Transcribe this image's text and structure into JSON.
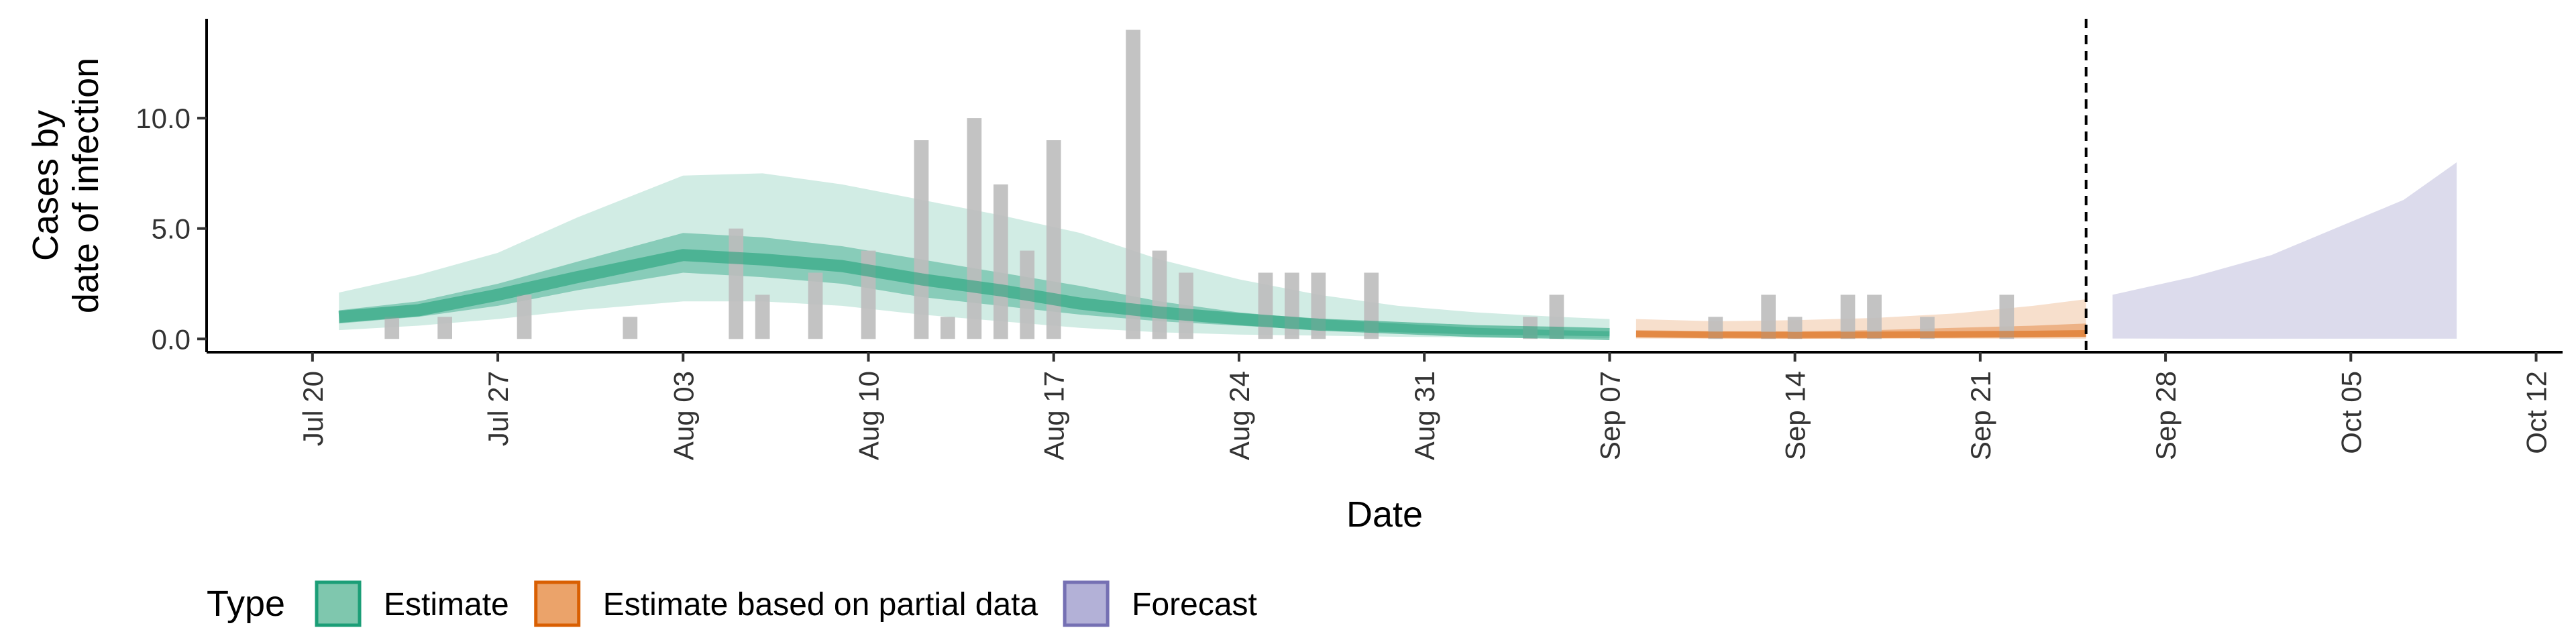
{
  "chart_data": {
    "type": "area",
    "xlabel": "Date",
    "ylabel_lines": [
      "Cases by",
      "date of infection"
    ],
    "ylim": [
      -0.6,
      14.5
    ],
    "y_ticks": [
      {
        "value": 0,
        "label": "0.0"
      },
      {
        "value": 5,
        "label": "5.0"
      },
      {
        "value": 10,
        "label": "10.0"
      }
    ],
    "xlim": [
      "2020-07-16",
      "2020-10-13"
    ],
    "x_ticks": [
      {
        "date": "2020-07-20",
        "label": "Jul 20"
      },
      {
        "date": "2020-07-27",
        "label": "Jul 27"
      },
      {
        "date": "2020-08-03",
        "label": "Aug 03"
      },
      {
        "date": "2020-08-10",
        "label": "Aug 10"
      },
      {
        "date": "2020-08-17",
        "label": "Aug 17"
      },
      {
        "date": "2020-08-24",
        "label": "Aug 24"
      },
      {
        "date": "2020-08-31",
        "label": "Aug 31"
      },
      {
        "date": "2020-09-07",
        "label": "Sep 07"
      },
      {
        "date": "2020-09-14",
        "label": "Sep 14"
      },
      {
        "date": "2020-09-21",
        "label": "Sep 21"
      },
      {
        "date": "2020-09-28",
        "label": "Sep 28"
      },
      {
        "date": "2020-10-05",
        "label": "Oct 05"
      },
      {
        "date": "2020-10-12",
        "label": "Oct 12"
      }
    ],
    "grid": false,
    "vline_date": "2020-09-25",
    "legend": {
      "title": "Type",
      "position": "bottom",
      "entries": [
        {
          "label": "Estimate",
          "fill": "#7fc7ae",
          "stroke": "#1b9e77"
        },
        {
          "label": "Estimate based on partial data",
          "fill": "#eba36a",
          "stroke": "#d95f02"
        },
        {
          "label": "Forecast",
          "fill": "#b3b1d7",
          "stroke": "#7570b3"
        }
      ]
    },
    "colors": {
      "estimate": "#1b9e77",
      "partial": "#d95f02",
      "forecast": "#7570b3",
      "bars": "#bdbdbd"
    },
    "observed_cases": [
      {
        "date": "2020-07-23",
        "value": 1
      },
      {
        "date": "2020-07-25",
        "value": 1
      },
      {
        "date": "2020-07-28",
        "value": 2
      },
      {
        "date": "2020-08-01",
        "value": 1
      },
      {
        "date": "2020-08-05",
        "value": 5
      },
      {
        "date": "2020-08-06",
        "value": 2
      },
      {
        "date": "2020-08-08",
        "value": 3
      },
      {
        "date": "2020-08-10",
        "value": 4
      },
      {
        "date": "2020-08-12",
        "value": 9
      },
      {
        "date": "2020-08-13",
        "value": 1
      },
      {
        "date": "2020-08-14",
        "value": 10
      },
      {
        "date": "2020-08-15",
        "value": 7
      },
      {
        "date": "2020-08-16",
        "value": 4
      },
      {
        "date": "2020-08-17",
        "value": 9
      },
      {
        "date": "2020-08-20",
        "value": 14
      },
      {
        "date": "2020-08-21",
        "value": 4
      },
      {
        "date": "2020-08-22",
        "value": 3
      },
      {
        "date": "2020-08-25",
        "value": 3
      },
      {
        "date": "2020-08-26",
        "value": 3
      },
      {
        "date": "2020-08-27",
        "value": 3
      },
      {
        "date": "2020-08-29",
        "value": 3
      },
      {
        "date": "2020-09-04",
        "value": 1
      },
      {
        "date": "2020-09-05",
        "value": 2
      },
      {
        "date": "2020-09-11",
        "value": 1
      },
      {
        "date": "2020-09-13",
        "value": 2
      },
      {
        "date": "2020-09-14",
        "value": 1
      },
      {
        "date": "2020-09-16",
        "value": 2
      },
      {
        "date": "2020-09-17",
        "value": 2
      },
      {
        "date": "2020-09-19",
        "value": 1
      },
      {
        "date": "2020-09-22",
        "value": 2
      }
    ],
    "estimate": {
      "dates": [
        "2020-07-21",
        "2020-07-24",
        "2020-07-27",
        "2020-07-30",
        "2020-08-03",
        "2020-08-06",
        "2020-08-09",
        "2020-08-12",
        "2020-08-15",
        "2020-08-18",
        "2020-08-21",
        "2020-08-24",
        "2020-08-27",
        "2020-08-30",
        "2020-09-02",
        "2020-09-05",
        "2020-09-07"
      ],
      "lower90": [
        0.4,
        0.6,
        0.9,
        1.3,
        1.7,
        1.7,
        1.5,
        1.1,
        0.8,
        0.5,
        0.3,
        0.2,
        0.15,
        0.1,
        0.07,
        0.05,
        0.04
      ],
      "upper90": [
        2.1,
        2.9,
        3.9,
        5.5,
        7.4,
        7.5,
        7.0,
        6.3,
        5.6,
        4.8,
        3.6,
        2.7,
        2.0,
        1.5,
        1.2,
        1.0,
        0.9
      ],
      "lower50": [
        0.7,
        1.0,
        1.5,
        2.2,
        3.0,
        2.8,
        2.5,
        1.9,
        1.5,
        1.1,
        0.8,
        0.6,
        0.4,
        0.3,
        0.2,
        0.15,
        0.12
      ],
      "upper50": [
        1.3,
        1.7,
        2.5,
        3.5,
        4.8,
        4.6,
        4.2,
        3.6,
        3.0,
        2.4,
        1.7,
        1.2,
        0.9,
        0.7,
        0.5,
        0.4,
        0.35
      ],
      "median": [
        1.0,
        1.3,
        2.0,
        2.8,
        3.8,
        3.6,
        3.3,
        2.7,
        2.2,
        1.6,
        1.2,
        0.9,
        0.65,
        0.5,
        0.35,
        0.28,
        0.22
      ]
    },
    "partial": {
      "dates": [
        "2020-09-08",
        "2020-09-11",
        "2020-09-14",
        "2020-09-17",
        "2020-09-20",
        "2020-09-23",
        "2020-09-25"
      ],
      "lower90": [
        0.02,
        0.01,
        0.01,
        0.01,
        0.01,
        0.01,
        0.01
      ],
      "upper90": [
        0.9,
        0.8,
        0.85,
        0.95,
        1.15,
        1.5,
        1.8
      ],
      "lower50": [
        0.08,
        0.06,
        0.05,
        0.05,
        0.06,
        0.07,
        0.08
      ],
      "upper50": [
        0.4,
        0.35,
        0.35,
        0.4,
        0.5,
        0.6,
        0.7
      ],
      "median": [
        0.22,
        0.18,
        0.17,
        0.18,
        0.2,
        0.22,
        0.25
      ]
    },
    "forecast": {
      "dates": [
        "2020-09-26",
        "2020-09-29",
        "2020-10-02",
        "2020-10-05",
        "2020-10-07",
        "2020-10-09"
      ],
      "lower90": [
        0.02,
        0.01,
        0.01,
        0.01,
        0.01,
        0.01
      ],
      "upper90": [
        2.0,
        2.8,
        3.8,
        5.3,
        6.3,
        8.0
      ]
    }
  }
}
